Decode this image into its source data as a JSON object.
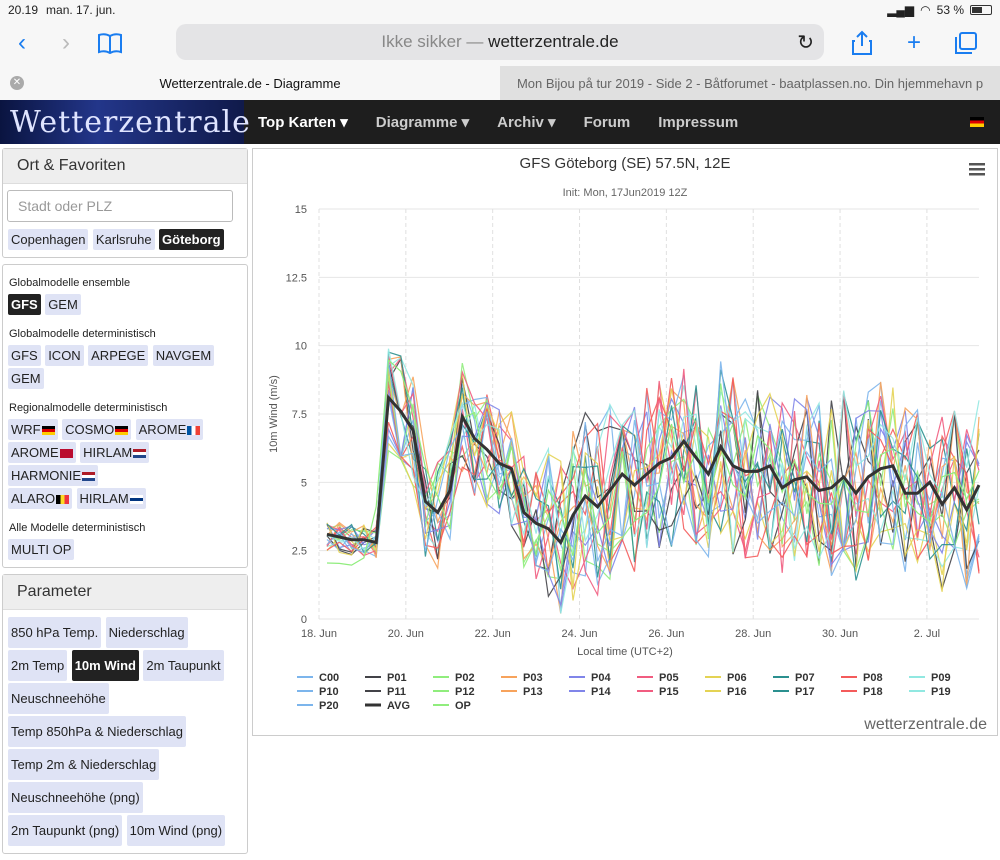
{
  "status": {
    "time": "20.19",
    "date": "man. 17. jun.",
    "battery": "53 %"
  },
  "browser": {
    "url_prefix": "Ikke sikker —",
    "url_host": "wetterzentrale.de",
    "tabs": [
      {
        "label": "Wetterzentrale.de - Diagramme"
      },
      {
        "label": "Mon Bijou på tur 2019 - Side 2 - Båtforumet - baatplassen.no. Din hjemmehavn p"
      }
    ]
  },
  "nav": {
    "logo": "Wetterzentrale",
    "items": [
      "Top Karten ▾",
      "Diagramme ▾",
      "Archiv ▾",
      "Forum",
      "Impressum"
    ]
  },
  "sidebar": {
    "fav_title": "Ort & Favoriten",
    "search_placeholder": "Stadt oder PLZ",
    "favorites": [
      "Copenhagen",
      "Karlsruhe",
      "Göteborg"
    ],
    "g1_title": "Globalmodelle ensemble",
    "g1": [
      "GFS",
      "GEM"
    ],
    "g2_title": "Globalmodelle deterministisch",
    "g2": [
      "GFS",
      "ICON",
      "ARPEGE",
      "NAVGEM",
      "GEM"
    ],
    "g3_title": "Regionalmodelle deterministisch",
    "g3": [
      "WRF",
      "COSMO",
      "AROME",
      "AROME",
      "HIRLAM",
      "HARMONIE",
      "ALARO",
      "HIRLAM"
    ],
    "g4_title": "Alle Modelle deterministisch",
    "g4": [
      "MULTI OP"
    ],
    "param_title": "Parameter",
    "params": [
      "850 hPa Temp.",
      "Niederschlag",
      "2m Temp",
      "10m Wind",
      "2m Taupunkt",
      "Neuschneehöhe",
      "Temp 850hPa & Niederschlag",
      "Temp 2m & Niederschlag",
      "Neuschneehöhe (png)",
      "2m Taupunkt (png)",
      "10m Wind (png)"
    ]
  },
  "credit": "wetterzentrale.de",
  "chart_data": {
    "type": "line",
    "title": "GFS Göteborg (SE) 57.5N, 12E",
    "subtitle": "Init: Mon, 17Jun2019 12Z",
    "xlabel": "Local time (UTC+2)",
    "ylabel": "10m Wind (m/s)",
    "ylim": [
      0,
      15
    ],
    "yticks": [
      0,
      2.5,
      5,
      7.5,
      10,
      12.5,
      15
    ],
    "xticks": [
      "18. Jun",
      "20. Jun",
      "22. Jun",
      "24. Jun",
      "26. Jun",
      "28. Jun",
      "30. Jun",
      "2. Jul"
    ],
    "grid": true,
    "legend": "bottom",
    "series_names": [
      "C00",
      "P01",
      "P02",
      "P03",
      "P04",
      "P05",
      "P06",
      "P07",
      "P08",
      "P09",
      "P10",
      "P11",
      "P12",
      "P13",
      "P14",
      "P15",
      "P16",
      "P17",
      "P18",
      "P19",
      "P20",
      "AVG",
      "OP"
    ],
    "colors": [
      "#7cb5ec",
      "#434348",
      "#90ed7d",
      "#f7a35c",
      "#8085e9",
      "#f15c80",
      "#e4d354",
      "#2b908f",
      "#f45b5b",
      "#91e8e1",
      "#7cb5ec",
      "#434348",
      "#90ed7d",
      "#f7a35c",
      "#8085e9",
      "#f15c80",
      "#e4d354",
      "#2b908f",
      "#f45b5b",
      "#91e8e1",
      "#7cb5ec",
      "#333333",
      "#90ed7d"
    ],
    "avg": [
      3.1,
      3.0,
      2.9,
      2.9,
      2.8,
      8.1,
      7.6,
      6.9,
      4.3,
      3.9,
      4.7,
      7.4,
      6.6,
      6.2,
      5.7,
      5.5,
      3.9,
      3.5,
      3.3,
      2.8,
      3.8,
      4.5,
      4.1,
      4.7,
      5.3,
      4.9,
      5.3,
      5.7,
      5.9,
      6.5,
      5.9,
      5.3,
      6.3,
      5.6,
      5.4,
      5.4,
      5.6,
      4.8,
      5.1,
      5.2,
      4.7,
      4.8,
      5.2,
      4.6,
      5.2,
      5.5,
      5.6,
      4.6,
      4.6,
      5.0,
      4.2,
      4.8,
      4.0,
      4.9
    ]
  }
}
